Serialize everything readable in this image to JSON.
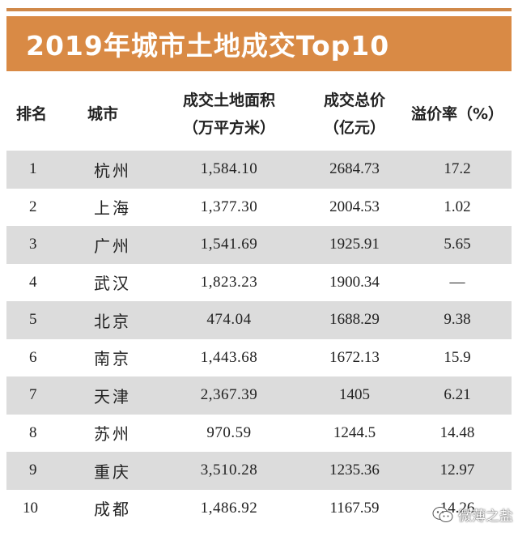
{
  "title": "2019年城市土地成交Top10",
  "header": {
    "rank": "排名",
    "city": "城市",
    "area_line1": "成交土地面积",
    "area_line2": "（万平方米）",
    "total_line1": "成交总价",
    "total_line2": "（亿元）",
    "premium": "溢价率（%）"
  },
  "rows": [
    {
      "rank": "1",
      "city": "杭州",
      "area": "1,584.10",
      "total": "2684.73",
      "premium": "17.2"
    },
    {
      "rank": "2",
      "city": "上海",
      "area": "1,377.30",
      "total": "2004.53",
      "premium": "1.02"
    },
    {
      "rank": "3",
      "city": "广州",
      "area": "1,541.69",
      "total": "1925.91",
      "premium": "5.65"
    },
    {
      "rank": "4",
      "city": "武汉",
      "area": "1,823.23",
      "total": "1900.34",
      "premium": "—"
    },
    {
      "rank": "5",
      "city": "北京",
      "area": "474.04",
      "total": "1688.29",
      "premium": "9.38"
    },
    {
      "rank": "6",
      "city": "南京",
      "area": "1,443.68",
      "total": "1672.13",
      "premium": "15.9"
    },
    {
      "rank": "7",
      "city": "天津",
      "area": "2,367.39",
      "total": "1405",
      "premium": "6.21"
    },
    {
      "rank": "8",
      "city": "苏州",
      "area": "970.59",
      "total": "1244.5",
      "premium": "14.48"
    },
    {
      "rank": "9",
      "city": "重庆",
      "area": "3,510.28",
      "total": "1235.36",
      "premium": "12.97"
    },
    {
      "rank": "10",
      "city": "成都",
      "area": "1,486.92",
      "total": "1167.59",
      "premium": "14.26"
    }
  ],
  "watermark": {
    "text": "微薄之盐",
    "icon": "wechat-icon"
  },
  "colors": {
    "banner": "#d98a45",
    "shaded_row": "#dcdcdc"
  }
}
